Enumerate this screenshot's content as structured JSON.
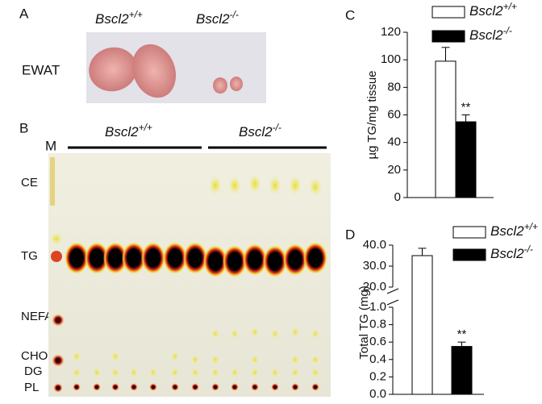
{
  "panels": {
    "A": {
      "label": "A",
      "groups": [
        "Bscl2+/+",
        "Bscl2-/-"
      ],
      "tissue": "EWAT"
    },
    "B": {
      "label": "B",
      "marker_lane": "M",
      "groups": [
        "Bscl2+/+",
        "Bscl2-/-"
      ],
      "lipids": [
        "CE",
        "TG",
        "NEFA",
        "CHO",
        "DG",
        "PL"
      ]
    }
  },
  "chart_data": [
    {
      "type": "bar",
      "panel": "C",
      "ylabel": "µg TG/mg tissue",
      "ylim": [
        0,
        120
      ],
      "yticks": [
        0,
        20,
        40,
        60,
        80,
        100,
        120
      ],
      "legend": "upper right",
      "series": [
        {
          "name": "Bscl2+/+",
          "color": "#ffffff",
          "values": [
            99
          ],
          "errors": [
            10
          ]
        },
        {
          "name": "Bscl2-/-",
          "color": "#000000",
          "values": [
            55
          ],
          "errors": [
            5
          ],
          "annotations": [
            "**"
          ]
        }
      ]
    },
    {
      "type": "broken_bar",
      "panel": "D",
      "ylabel": "Total TG (mg)",
      "legend": "upper right",
      "segments": [
        {
          "ylim": [
            0,
            1
          ],
          "yticks": [
            {
              "value": 0,
              "label": "0.0"
            },
            {
              "value": 0.2,
              "label": "0.2"
            },
            {
              "value": 0.4,
              "label": "0.4"
            },
            {
              "value": 0.6,
              "label": "0.6"
            },
            {
              "value": 0.8,
              "label": "0.8"
            },
            {
              "value": 1,
              "label": "1.0"
            }
          ]
        },
        {
          "ylim": [
            20,
            40
          ],
          "yticks": [
            {
              "value": 20,
              "label": "20.0"
            },
            {
              "value": 30,
              "label": "30.0"
            },
            {
              "value": 40,
              "label": "40.0"
            }
          ]
        }
      ],
      "series": [
        {
          "name": "Bscl2+/+",
          "color": "#ffffff",
          "values": [
            35
          ],
          "errors": [
            3.5
          ]
        },
        {
          "name": "Bscl2-/-",
          "color": "#000000",
          "values": [
            0.55
          ],
          "errors": [
            0.05
          ],
          "annotations": [
            "**"
          ]
        }
      ]
    }
  ]
}
